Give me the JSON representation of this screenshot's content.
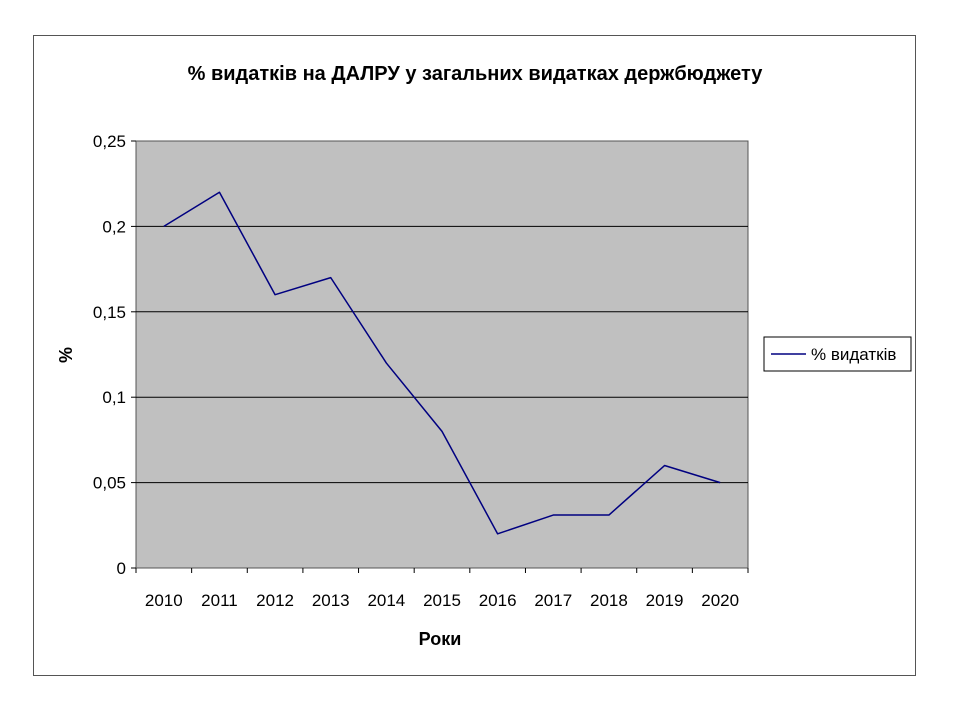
{
  "chart_data": {
    "type": "line",
    "title": "% видатків на ДАЛРУ у загальних видатках держбюджету",
    "xlabel": "Роки",
    "ylabel": "%",
    "categories": [
      "2010",
      "2011",
      "2012",
      "2013",
      "2014",
      "2015",
      "2016",
      "2017",
      "2018",
      "2019",
      "2020"
    ],
    "series": [
      {
        "name": "% видатків",
        "values": [
          0.2,
          0.22,
          0.16,
          0.17,
          0.12,
          0.08,
          0.02,
          0.031,
          0.031,
          0.06,
          0.05
        ]
      }
    ],
    "ylim": [
      0,
      0.25
    ],
    "yticks": [
      0,
      0.05,
      0.1,
      0.15,
      0.2,
      0.25
    ],
    "ytick_labels": [
      "0",
      "0,05",
      "0,1",
      "0,15",
      "0,2",
      "0,25"
    ],
    "grid": true,
    "legend_position": "right",
    "colors": {
      "plot_background": "#c0c0c0",
      "line": "#000080",
      "gridline": "#000000"
    }
  }
}
